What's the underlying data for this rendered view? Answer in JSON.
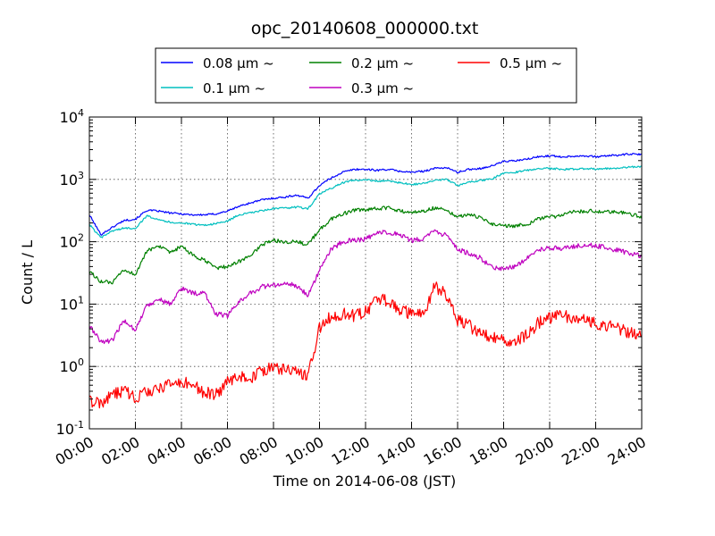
{
  "chart_data": {
    "type": "line",
    "title": "opc_20140608_000000.txt",
    "xlabel": "Time on 2014-06-08 (JST)",
    "ylabel": "Count / L",
    "yscale": "log",
    "ylim": [
      0.1,
      10000
    ],
    "xlim": [
      "00:00",
      "24:00"
    ],
    "grid": true,
    "legend_placement": "top-center, above plot",
    "x_tick_labels": [
      "00:00",
      "02:00",
      "04:00",
      "06:00",
      "08:00",
      "10:00",
      "12:00",
      "14:00",
      "16:00",
      "18:00",
      "20:00",
      "22:00",
      "24:00"
    ],
    "y_ticks": [
      {
        "value": 0.1,
        "base": "10",
        "exp": "-1"
      },
      {
        "value": 1,
        "base": "10",
        "exp": "0"
      },
      {
        "value": 10,
        "base": "10",
        "exp": "1"
      },
      {
        "value": 100,
        "base": "10",
        "exp": "2"
      },
      {
        "value": 1000,
        "base": "10",
        "exp": "3"
      },
      {
        "value": 10000,
        "base": "10",
        "exp": "4"
      }
    ],
    "x": [
      "00:00",
      "00:30",
      "01:00",
      "01:30",
      "02:00",
      "02:30",
      "03:00",
      "03:30",
      "04:00",
      "04:30",
      "05:00",
      "05:30",
      "06:00",
      "06:30",
      "07:00",
      "07:30",
      "08:00",
      "08:30",
      "09:00",
      "09:30",
      "10:00",
      "10:30",
      "11:00",
      "11:30",
      "12:00",
      "12:30",
      "13:00",
      "13:30",
      "14:00",
      "14:30",
      "15:00",
      "15:30",
      "16:00",
      "16:30",
      "17:00",
      "17:30",
      "18:00",
      "18:30",
      "19:00",
      "19:30",
      "20:00",
      "20:30",
      "21:00",
      "21:30",
      "22:00",
      "22:30",
      "23:00",
      "23:30",
      "24:00"
    ],
    "series": [
      {
        "name": "0.08 μm ~",
        "color": "#0000ff",
        "noise": 0.015,
        "values": [
          270,
          130,
          170,
          220,
          230,
          320,
          310,
          290,
          280,
          270,
          270,
          280,
          310,
          370,
          420,
          470,
          500,
          520,
          560,
          500,
          800,
          1050,
          1300,
          1450,
          1450,
          1400,
          1450,
          1350,
          1300,
          1350,
          1500,
          1550,
          1300,
          1450,
          1500,
          1650,
          1950,
          1980,
          2100,
          2300,
          2400,
          2300,
          2350,
          2400,
          2300,
          2400,
          2450,
          2550,
          2500
        ]
      },
      {
        "name": "0.1 μm ~",
        "color": "#00bfbf",
        "noise": 0.015,
        "values": [
          190,
          115,
          150,
          165,
          165,
          260,
          230,
          205,
          200,
          190,
          185,
          195,
          215,
          270,
          290,
          315,
          340,
          345,
          360,
          340,
          580,
          720,
          880,
          970,
          980,
          940,
          950,
          880,
          830,
          860,
          960,
          1000,
          800,
          900,
          960,
          1020,
          1260,
          1300,
          1400,
          1500,
          1500,
          1450,
          1460,
          1480,
          1480,
          1500,
          1500,
          1580,
          1600
        ]
      },
      {
        "name": "0.2 μm ~",
        "color": "#008000",
        "noise": 0.03,
        "values": [
          33,
          23,
          22,
          35,
          30,
          70,
          88,
          65,
          85,
          60,
          50,
          38,
          40,
          48,
          60,
          90,
          105,
          100,
          100,
          90,
          155,
          230,
          280,
          320,
          320,
          340,
          350,
          310,
          295,
          310,
          350,
          330,
          250,
          275,
          240,
          195,
          180,
          180,
          190,
          230,
          250,
          260,
          300,
          310,
          310,
          300,
          295,
          280,
          250
        ]
      },
      {
        "name": "0.3 μm ~",
        "color": "#bf00bf",
        "noise": 0.04,
        "values": [
          4.5,
          2.5,
          2.6,
          5.5,
          3.9,
          9.5,
          12,
          10,
          18,
          15,
          15,
          7,
          6.5,
          11,
          15,
          19,
          20,
          21,
          20,
          14,
          35,
          75,
          100,
          105,
          110,
          135,
          145,
          125,
          105,
          110,
          150,
          125,
          75,
          65,
          55,
          38,
          38,
          40,
          55,
          75,
          80,
          78,
          85,
          88,
          86,
          80,
          72,
          65,
          60
        ]
      },
      {
        "name": "0.5 μm ~",
        "color": "#ff0000",
        "noise": 0.1,
        "values": [
          0.28,
          0.25,
          0.36,
          0.4,
          0.32,
          0.38,
          0.45,
          0.5,
          0.55,
          0.52,
          0.38,
          0.35,
          0.55,
          0.7,
          0.65,
          0.85,
          0.95,
          0.9,
          0.8,
          0.75,
          4.0,
          6.5,
          7.0,
          6.5,
          7.5,
          12,
          11,
          8,
          7,
          6.5,
          20,
          14,
          5.5,
          4.5,
          3.2,
          3.0,
          2.7,
          2.5,
          3.2,
          5.0,
          6.0,
          6.5,
          6.0,
          5.8,
          5.0,
          4.5,
          4.0,
          3.5,
          3.0
        ]
      }
    ]
  }
}
